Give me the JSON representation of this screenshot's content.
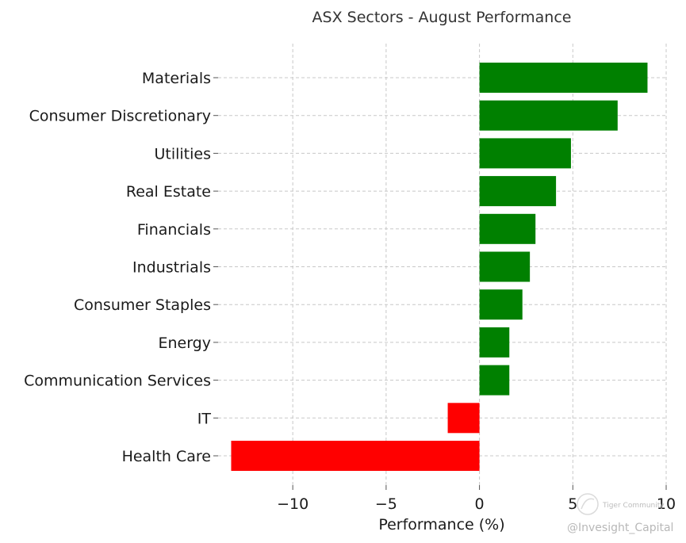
{
  "chart_data": {
    "type": "bar",
    "orientation": "horizontal",
    "title": "ASX Sectors - August Performance",
    "xlabel": "Performance (%)",
    "ylabel": "",
    "xlim": [
      -14,
      10
    ],
    "xticks": [
      -10,
      -5,
      0,
      5,
      10
    ],
    "xtick_labels": [
      "−10",
      "−5",
      "0",
      "5",
      "10"
    ],
    "grid": true,
    "categories": [
      "Materials",
      "Consumer Discretionary",
      "Utilities",
      "Real Estate",
      "Financials",
      "Industrials",
      "Consumer Staples",
      "Energy",
      "Communication Services",
      "IT",
      "Health Care"
    ],
    "values": [
      9.0,
      7.4,
      4.9,
      4.1,
      3.0,
      2.7,
      2.3,
      1.6,
      1.6,
      -1.7,
      -13.3
    ],
    "positive_color": "#008000",
    "negative_color": "#ff0000"
  },
  "watermark": {
    "brand": "Tiger Community",
    "handle": "@Invesight_Capital"
  }
}
